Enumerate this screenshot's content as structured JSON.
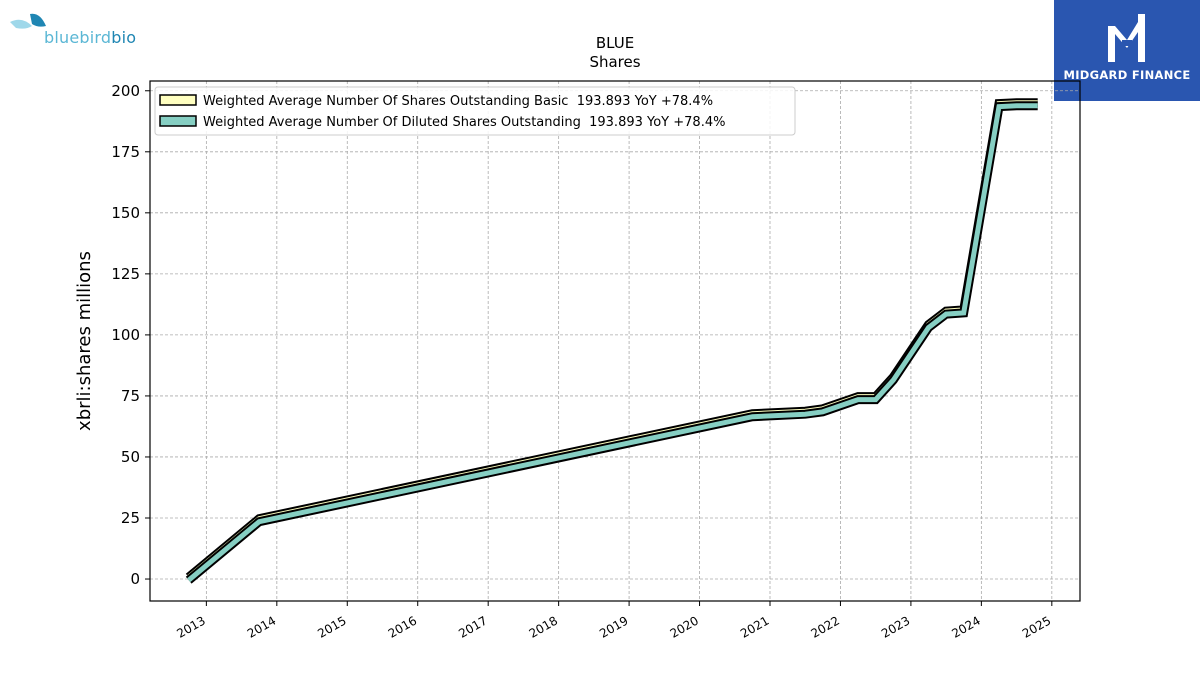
{
  "branding": {
    "left_logo_text": "bluebirdbio",
    "left_logo_parts": [
      "bluebird",
      "bio"
    ],
    "right_logo_text": "MIDGARD FINANCE",
    "colors": {
      "bluebird_cyan": "#5bb7d5",
      "bluebird_dark": "#1f86b3",
      "midgard_blue": "#2a56b0"
    }
  },
  "chart_data": {
    "type": "line",
    "title": "BLUE",
    "subtitle": "Shares",
    "ylabel": "xbrli:shares millions",
    "xlabel": "",
    "ylim": [
      -9,
      204
    ],
    "xlim": [
      2012.2,
      2025.4
    ],
    "yticks": [
      0,
      25,
      50,
      75,
      100,
      125,
      150,
      175,
      200
    ],
    "xticks": [
      2013,
      2014,
      2015,
      2016,
      2017,
      2018,
      2019,
      2020,
      2021,
      2022,
      2023,
      2024,
      2025
    ],
    "xtick_labels": [
      "2013",
      "2014",
      "2015",
      "2016",
      "2017",
      "2018",
      "2019",
      "2020",
      "2021",
      "2022",
      "2023",
      "2024",
      "2025"
    ],
    "grid": true,
    "legend_position": "top-left",
    "series": [
      {
        "name": "Weighted Average Number Of Shares Outstanding Basic  193.893 YoY +78.4%",
        "color": "#ffffc0",
        "x": [
          2012.75,
          2013.75,
          2020.75,
          2021.5,
          2021.75,
          2022.25,
          2022.5,
          2022.75,
          2023.25,
          2023.5,
          2023.75,
          2024.25,
          2024.5,
          2024.8
        ],
        "y": [
          -0.5,
          23.5,
          66.5,
          67.5,
          68.5,
          73.5,
          73.5,
          81.5,
          103,
          108.5,
          109,
          193.5,
          193.9,
          193.9
        ]
      },
      {
        "name": "Weighted Average Number Of Diluted Shares Outstanding  193.893 YoY +78.4%",
        "color": "#86cfc3",
        "x": [
          2012.75,
          2013.75,
          2020.75,
          2021.5,
          2021.75,
          2022.25,
          2022.5,
          2022.75,
          2023.25,
          2023.5,
          2023.75,
          2024.25,
          2024.5,
          2024.8
        ],
        "y": [
          -0.5,
          23.5,
          66.5,
          67.5,
          68.5,
          73.5,
          73.5,
          81.5,
          103,
          108.5,
          109,
          193.5,
          193.9,
          193.9
        ]
      }
    ]
  }
}
